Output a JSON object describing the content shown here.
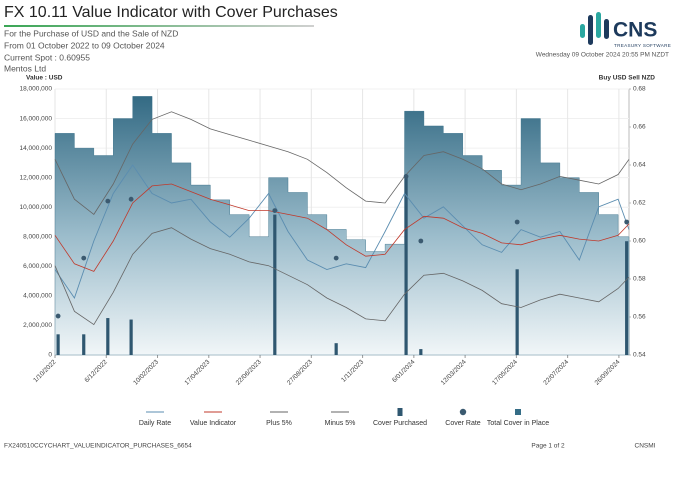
{
  "header": {
    "title": "FX 10.11 Value Indicator with Cover Purchases",
    "subtitle": [
      "For the Purchase of USD and the Sale of NZD",
      "From 01 October 2022 to 09 October 2024",
      "Current Spot : 0.60955",
      "Mentos Ltd"
    ],
    "timestamp": "Wednesday 09 October 2024 20:55 PM NZDT",
    "logo": {
      "name": "CNS",
      "tagline": "TREASURY SOFTWARE"
    }
  },
  "chart_data": {
    "type": "combo",
    "y_label": "Value : USD",
    "y2_label": "Buy USD Sell NZD",
    "xlim": [
      "1/10/2022",
      "9/10/2024"
    ],
    "xticks": [
      "1/10/2022",
      "6/12/2022",
      "10/02/2023",
      "17/04/2023",
      "22/06/2023",
      "27/08/2023",
      "1/11/2023",
      "6/01/2024",
      "12/03/2024",
      "17/05/2024",
      "22/07/2024",
      "26/09/2024"
    ],
    "ylim": [
      0,
      18000000
    ],
    "yticks": [
      0,
      {
        "value": 2000000,
        "label": "2,000,000"
      },
      {
        "value": 4000000,
        "label": "4,000,000"
      },
      {
        "value": 6000000,
        "label": "6,000,000"
      },
      {
        "value": 8000000,
        "label": "8,000,000"
      },
      {
        "value": 10000000,
        "label": "10,000,000"
      },
      {
        "value": 12000000,
        "label": "12,000,000"
      },
      {
        "value": 14000000,
        "label": "14,000,000"
      },
      {
        "value": 16000000,
        "label": "16,000,000"
      },
      {
        "value": 18000000,
        "label": "18,000,000"
      }
    ],
    "y2lim": [
      0.54,
      0.68
    ],
    "y2ticks": [
      0.54,
      0.56,
      0.58,
      {
        "value": 0.6,
        "label": "0.60"
      },
      0.62,
      0.64,
      0.66,
      0.68
    ],
    "grid": true,
    "legend": "bottom",
    "x": [
      "1/10/2022",
      "26/10/2022",
      "20/11/2022",
      "15/12/2022",
      "9/01/2023",
      "3/02/2023",
      "28/02/2023",
      "25/03/2023",
      "19/04/2023",
      "14/05/2023",
      "8/06/2023",
      "3/07/2023",
      "28/07/2023",
      "22/08/2023",
      "16/09/2023",
      "11/10/2023",
      "5/11/2023",
      "30/11/2023",
      "25/12/2023",
      "19/01/2024",
      "13/02/2024",
      "9/03/2024",
      "3/04/2024",
      "28/04/2024",
      "23/05/2024",
      "17/06/2024",
      "12/07/2024",
      "6/08/2024",
      "31/08/2024",
      "25/09/2024",
      "9/10/2024"
    ],
    "series": [
      {
        "name": "Daily Rate",
        "type": "line",
        "axis": "y2",
        "color": "#5b8db0",
        "values": [
          0.585,
          0.57,
          0.6,
          0.625,
          0.64,
          0.625,
          0.62,
          0.622,
          0.61,
          0.602,
          0.612,
          0.625,
          0.605,
          0.59,
          0.585,
          0.588,
          0.586,
          0.605,
          0.625,
          0.612,
          0.618,
          0.608,
          0.598,
          0.594,
          0.606,
          0.602,
          0.605,
          0.59,
          0.618,
          0.622,
          0.606
        ]
      },
      {
        "name": "Value Indicator",
        "type": "line",
        "axis": "y2",
        "color": "#c0392b",
        "values": [
          0.603,
          0.588,
          0.584,
          0.6,
          0.62,
          0.629,
          0.63,
          0.626,
          0.622,
          0.619,
          0.616,
          0.616,
          0.614,
          0.612,
          0.606,
          0.598,
          0.592,
          0.593,
          0.606,
          0.613,
          0.612,
          0.607,
          0.604,
          0.599,
          0.598,
          0.601,
          0.603,
          0.601,
          0.6,
          0.603,
          0.609
        ]
      },
      {
        "name": "Plus 5%",
        "type": "line",
        "axis": "y2",
        "color": "#666666",
        "values": [
          0.643,
          0.622,
          0.614,
          0.63,
          0.651,
          0.664,
          0.668,
          0.664,
          0.659,
          0.656,
          0.653,
          0.65,
          0.647,
          0.643,
          0.636,
          0.628,
          0.621,
          0.62,
          0.634,
          0.645,
          0.647,
          0.643,
          0.638,
          0.63,
          0.627,
          0.63,
          0.634,
          0.632,
          0.63,
          0.635,
          0.643
        ]
      },
      {
        "name": "Minus 5%",
        "type": "line",
        "axis": "y2",
        "color": "#666666",
        "values": [
          0.587,
          0.563,
          0.556,
          0.573,
          0.593,
          0.604,
          0.607,
          0.601,
          0.596,
          0.593,
          0.589,
          0.587,
          0.582,
          0.577,
          0.57,
          0.565,
          0.559,
          0.558,
          0.572,
          0.582,
          0.583,
          0.579,
          0.574,
          0.567,
          0.565,
          0.569,
          0.572,
          0.57,
          0.568,
          0.575,
          0.581
        ]
      },
      {
        "name": "Cover Purchased",
        "type": "bar",
        "color": "#2f5770",
        "x": [
          "5/10/2022",
          "7/11/2022",
          "8/12/2022",
          "7/01/2023",
          "11/07/2023",
          "28/09/2023",
          "27/12/2023",
          "15/01/2024",
          "18/05/2024",
          "6/10/2024"
        ],
        "values": [
          1400000,
          1400000,
          2500000,
          2400000,
          9500000,
          800000,
          12000000,
          400000,
          5800000,
          7700000
        ]
      },
      {
        "name": "Cover Rate",
        "type": "scatter",
        "axis": "y2",
        "color": "#3b5a70",
        "x": [
          "5/10/2022",
          "7/11/2022",
          "8/12/2022",
          "7/01/2023",
          "11/07/2023",
          "28/09/2023",
          "27/12/2023",
          "15/01/2024",
          "18/05/2024",
          "6/10/2024"
        ],
        "values": [
          0.5605,
          0.591,
          0.621,
          0.622,
          0.616,
          0.591,
          0.634,
          0.6,
          0.61,
          0.61
        ]
      },
      {
        "name": "Total Cover in Place",
        "type": "area",
        "color": "#356d86",
        "values": [
          15000000,
          14000000,
          13500000,
          16000000,
          17500000,
          15000000,
          13000000,
          11500000,
          10500000,
          9500000,
          8000000,
          12000000,
          11000000,
          9500000,
          8500000,
          7800000,
          7000000,
          7500000,
          16500000,
          15500000,
          15000000,
          13500000,
          12500000,
          11500000,
          16000000,
          13000000,
          12000000,
          11000000,
          9500000,
          8000000,
          7700000
        ]
      }
    ]
  },
  "footer": {
    "code": "FX240510CCYCHART_VALUEINDICATOR_PURCHASES_6654",
    "page": "Page 1 of 2",
    "user": "CNSMI"
  }
}
